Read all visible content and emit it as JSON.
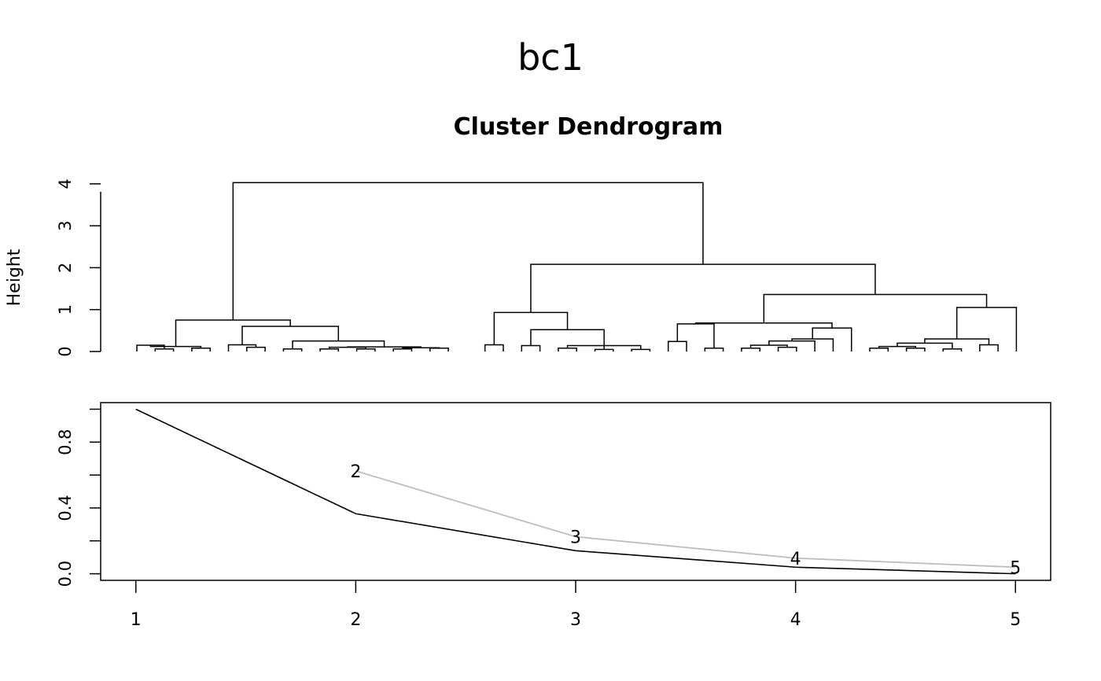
{
  "figure": {
    "title": "bc1"
  },
  "colors": {
    "ink": "#000000",
    "secondary_line": "#bebebe",
    "background": "#ffffff"
  },
  "chart_data": [
    {
      "type": "dendrogram",
      "title": "Cluster Dendrogram",
      "ylabel": "Height",
      "xlabel": "",
      "ylim": [
        0,
        4.2
      ],
      "yticks": [
        {
          "value": 0,
          "label": "0"
        },
        {
          "value": 1,
          "label": "1"
        },
        {
          "value": 2,
          "label": "2"
        },
        {
          "value": 3,
          "label": "3"
        },
        {
          "value": 4,
          "label": "4"
        }
      ],
      "leaf_count": 50,
      "leaf_labels_shown": false,
      "cluster_k_heights": [
        {
          "k": 2,
          "height": 4.03
        },
        {
          "k": 3,
          "height": 2.08
        },
        {
          "k": 4,
          "height": 1.36
        },
        {
          "k": 5,
          "height": 1.05
        }
      ]
    },
    {
      "type": "line",
      "title": "",
      "xlabel": "",
      "ylabel": "",
      "xlim": [
        0.84,
        5.16
      ],
      "ylim": [
        -0.04,
        1.04
      ],
      "x": [
        1,
        2,
        3,
        4,
        5
      ],
      "xticks": [
        {
          "value": 1,
          "label": "1"
        },
        {
          "value": 2,
          "label": "2"
        },
        {
          "value": 3,
          "label": "3"
        },
        {
          "value": 4,
          "label": "4"
        },
        {
          "value": 5,
          "label": "5"
        }
      ],
      "yticks": [
        {
          "value": 0.0,
          "label": "0.0"
        },
        {
          "value": 0.2,
          "label": ""
        },
        {
          "value": 0.4,
          "label": "0.4"
        },
        {
          "value": 0.6,
          "label": ""
        },
        {
          "value": 0.8,
          "label": "0.8"
        },
        {
          "value": 1.0,
          "label": ""
        }
      ],
      "series": [
        {
          "color": "#000000",
          "x": [
            1,
            2,
            3,
            4,
            5
          ],
          "values": [
            1.0,
            0.365,
            0.14,
            0.04,
            0.0
          ]
        },
        {
          "color": "#bebebe",
          "x": [
            2,
            3,
            4,
            5
          ],
          "values": [
            0.625,
            0.225,
            0.095,
            0.04
          ],
          "point_labels": [
            "2",
            "3",
            "4",
            "5"
          ]
        }
      ],
      "grid": false
    }
  ]
}
